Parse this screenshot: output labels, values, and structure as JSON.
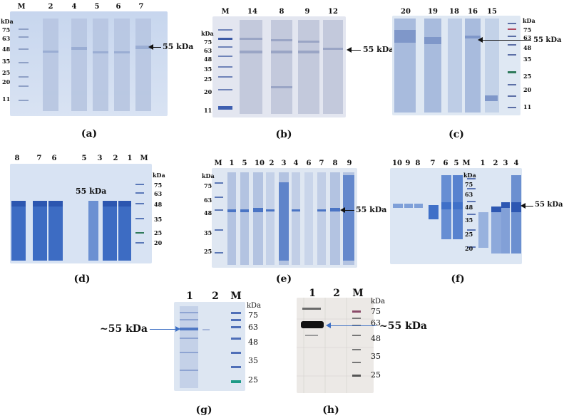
{
  "figure": {
    "panels": [
      {
        "id": "a",
        "caption": "(a)",
        "kda_label": "kDa",
        "lanes": [
          "M",
          "2",
          "4",
          "5",
          "6",
          "7"
        ],
        "markers": [
          "75",
          "63",
          "48",
          "35",
          "25",
          "20",
          "11"
        ],
        "annotation": "55 kDa"
      },
      {
        "id": "b",
        "caption": "(b)",
        "kda_label": "kDa",
        "lanes": [
          "M",
          "14",
          "8",
          "9",
          "12"
        ],
        "markers": [
          "75",
          "63",
          "48",
          "35",
          "25",
          "20",
          "11"
        ],
        "annotation": "55 kDa"
      },
      {
        "id": "c",
        "caption": "(c)",
        "kda_label": "kDa",
        "lanes": [
          "20",
          "19",
          "18",
          "16",
          "15"
        ],
        "markers": [
          "75",
          "63",
          "48",
          "35",
          "25",
          "20",
          "11"
        ],
        "annotation": "55 kDa"
      },
      {
        "id": "d",
        "caption": "(d)",
        "kda_label": "kDa",
        "lanes": [
          "8",
          "7",
          "6",
          "5",
          "3",
          "2",
          "1",
          "M"
        ],
        "markers": [
          "75",
          "63",
          "48",
          "35",
          "25",
          "20"
        ],
        "annotation": "55 kDa"
      },
      {
        "id": "e",
        "caption": "(e)",
        "kda_label": "kDa",
        "lanes": [
          "M",
          "1",
          "5",
          "10",
          "2",
          "3",
          "4",
          "6",
          "7",
          "8",
          "9"
        ],
        "markers": [
          "75",
          "63",
          "48",
          "35",
          "25"
        ],
        "annotation": "55 kDa"
      },
      {
        "id": "f",
        "caption": "(f)",
        "kda_label": "kDa",
        "lanes": [
          "10",
          "9",
          "8",
          "7",
          "6",
          "5",
          "M",
          "1",
          "2",
          "3",
          "4"
        ],
        "markers": [
          "75",
          "63",
          "48",
          "35",
          "25",
          "20"
        ],
        "annotation": "55 kDa"
      },
      {
        "id": "g",
        "caption": "(g)",
        "kda_label": "kDa",
        "lanes": [
          "1",
          "2",
          "M"
        ],
        "markers": [
          "75",
          "63",
          "48",
          "35",
          "25"
        ],
        "annotation": "~55 kDa"
      },
      {
        "id": "h",
        "caption": "(h)",
        "kda_label": "kDa",
        "lanes": [
          "1",
          "2",
          "M"
        ],
        "markers": [
          "75",
          "63",
          "48",
          "35",
          "25"
        ],
        "annotation": "~55 kDa"
      }
    ],
    "colors": {
      "gel_light": "#dde6f2",
      "gel_mid": "#b9cae6",
      "band_blue": "#3f6fc0",
      "band_deep": "#2a58b8",
      "blot_bg": "#ece9e6",
      "blot_band": "#111111",
      "annotation_arrow_blue": "#3c6fc4"
    }
  }
}
